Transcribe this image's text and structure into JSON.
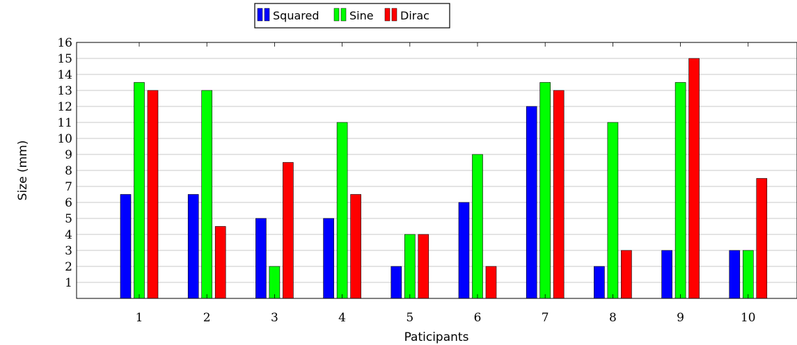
{
  "chart_data": {
    "type": "bar",
    "title": "",
    "xlabel": "Paticipants",
    "ylabel": "Size (mm)",
    "categories": [
      "1",
      "2",
      "3",
      "4",
      "5",
      "6",
      "7",
      "8",
      "9",
      "10"
    ],
    "yticks": [
      1,
      2,
      3,
      4,
      5,
      6,
      7,
      8,
      9,
      10,
      11,
      12,
      13,
      14,
      15,
      16
    ],
    "ylim": [
      0,
      16
    ],
    "grid": "horizontal",
    "legend_position": "top-center",
    "series": [
      {
        "name": "Squared",
        "color": "#0000ff",
        "values": [
          6.5,
          6.5,
          5,
          5,
          2,
          6,
          12,
          2,
          3,
          3
        ]
      },
      {
        "name": "Sine",
        "color": "#00ff00",
        "values": [
          13.5,
          13,
          2,
          11,
          4,
          9,
          13.5,
          11,
          13.5,
          3
        ]
      },
      {
        "name": "Dirac",
        "color": "#ff0000",
        "values": [
          13,
          4.5,
          8.5,
          6.5,
          4,
          2,
          13,
          3,
          15,
          7.5
        ]
      }
    ]
  }
}
